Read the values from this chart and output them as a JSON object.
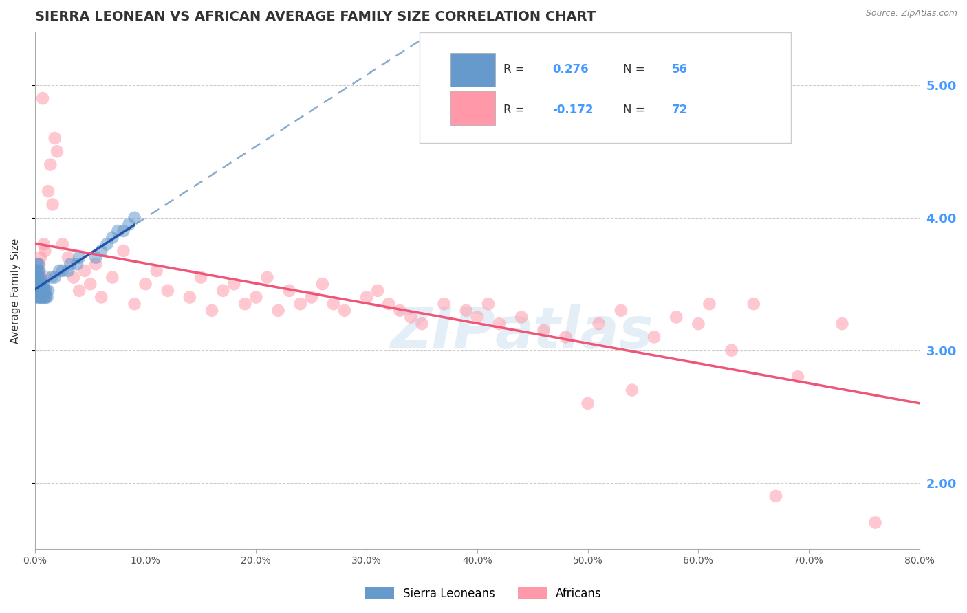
{
  "title": "SIERRA LEONEAN VS AFRICAN AVERAGE FAMILY SIZE CORRELATION CHART",
  "source": "Source: ZipAtlas.com",
  "ylabel": "Average Family Size",
  "xlim": [
    0.0,
    0.8
  ],
  "ylim": [
    1.5,
    5.4
  ],
  "yticks": [
    2.0,
    3.0,
    4.0,
    5.0
  ],
  "right_ytick_color": "#4499ff",
  "legend_label1": "Sierra Leoneans",
  "legend_label2": "Africans",
  "blue_color": "#6699cc",
  "pink_color": "#ff99aa",
  "blue_line_color": "#2255aa",
  "pink_line_color": "#ee5577",
  "dashed_line_color": "#88aacc",
  "title_fontsize": 14,
  "axis_label_fontsize": 11,
  "sierra_x": [
    0.001,
    0.001,
    0.001,
    0.001,
    0.002,
    0.002,
    0.002,
    0.002,
    0.002,
    0.003,
    0.003,
    0.003,
    0.003,
    0.003,
    0.003,
    0.004,
    0.004,
    0.004,
    0.004,
    0.004,
    0.005,
    0.005,
    0.005,
    0.005,
    0.006,
    0.006,
    0.006,
    0.007,
    0.007,
    0.007,
    0.008,
    0.008,
    0.008,
    0.009,
    0.009,
    0.01,
    0.01,
    0.011,
    0.012,
    0.015,
    0.018,
    0.022,
    0.025,
    0.03,
    0.032,
    0.038,
    0.04,
    0.055,
    0.06,
    0.065,
    0.07,
    0.075,
    0.08,
    0.085,
    0.09
  ],
  "sierra_y": [
    3.4,
    3.5,
    3.55,
    3.6,
    3.45,
    3.5,
    3.55,
    3.6,
    3.65,
    3.4,
    3.45,
    3.5,
    3.55,
    3.6,
    3.65,
    3.4,
    3.45,
    3.5,
    3.55,
    3.6,
    3.4,
    3.45,
    3.5,
    3.55,
    3.4,
    3.45,
    3.5,
    3.4,
    3.45,
    3.5,
    3.4,
    3.45,
    3.5,
    3.4,
    3.45,
    3.4,
    3.45,
    3.4,
    3.45,
    3.55,
    3.55,
    3.6,
    3.6,
    3.6,
    3.65,
    3.65,
    3.7,
    3.7,
    3.75,
    3.8,
    3.85,
    3.9,
    3.9,
    3.95,
    4.0
  ],
  "africa_x": [
    0.001,
    0.002,
    0.003,
    0.004,
    0.005,
    0.006,
    0.007,
    0.008,
    0.009,
    0.01,
    0.012,
    0.014,
    0.016,
    0.018,
    0.02,
    0.025,
    0.03,
    0.035,
    0.04,
    0.045,
    0.05,
    0.055,
    0.06,
    0.07,
    0.08,
    0.09,
    0.1,
    0.11,
    0.12,
    0.14,
    0.15,
    0.16,
    0.17,
    0.18,
    0.19,
    0.2,
    0.21,
    0.22,
    0.23,
    0.24,
    0.25,
    0.26,
    0.27,
    0.28,
    0.3,
    0.31,
    0.32,
    0.33,
    0.34,
    0.35,
    0.37,
    0.39,
    0.4,
    0.41,
    0.42,
    0.44,
    0.46,
    0.48,
    0.5,
    0.51,
    0.53,
    0.54,
    0.56,
    0.58,
    0.6,
    0.61,
    0.63,
    0.65,
    0.67,
    0.69,
    0.73,
    0.76
  ],
  "africa_y": [
    3.5,
    3.6,
    3.55,
    3.65,
    3.7,
    3.45,
    4.9,
    3.8,
    3.75,
    3.55,
    4.2,
    4.4,
    4.1,
    4.6,
    4.5,
    3.8,
    3.7,
    3.55,
    3.45,
    3.6,
    3.5,
    3.65,
    3.4,
    3.55,
    3.75,
    3.35,
    3.5,
    3.6,
    3.45,
    3.4,
    3.55,
    3.3,
    3.45,
    3.5,
    3.35,
    3.4,
    3.55,
    3.3,
    3.45,
    3.35,
    3.4,
    3.5,
    3.35,
    3.3,
    3.4,
    3.45,
    3.35,
    3.3,
    3.25,
    3.2,
    3.35,
    3.3,
    3.25,
    3.35,
    3.2,
    3.25,
    3.15,
    3.1,
    2.6,
    3.2,
    3.3,
    2.7,
    3.1,
    3.25,
    3.2,
    3.35,
    3.0,
    3.35,
    1.9,
    2.8,
    3.2,
    1.7
  ]
}
